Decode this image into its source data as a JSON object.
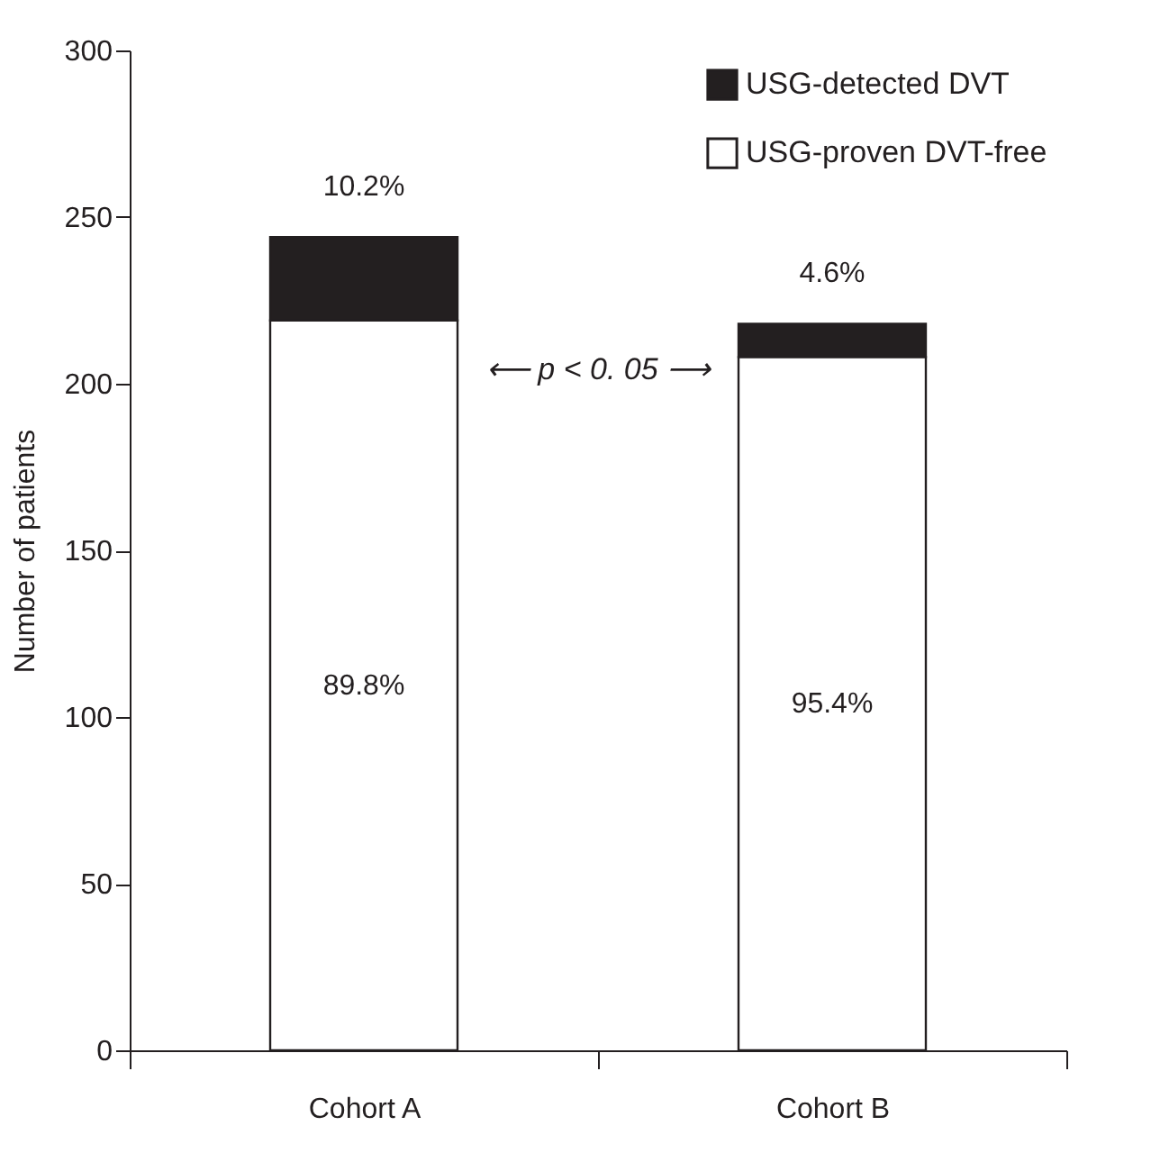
{
  "chart_data": {
    "type": "bar",
    "stacked": true,
    "categories": [
      "Cohort A",
      "Cohort B"
    ],
    "ylabel": "Number of patients",
    "ylim": [
      0,
      300
    ],
    "yticks": [
      0,
      50,
      100,
      150,
      200,
      250,
      300
    ],
    "grid": false,
    "legend": "top right",
    "series": [
      {
        "name": "USG-proven DVT-free",
        "color": "#ffffff",
        "values": [
          219,
          208
        ]
      },
      {
        "name": "USG-detected DVT",
        "color": "#231f20",
        "values": [
          25,
          10
        ]
      }
    ],
    "annotations": [
      "89.8%",
      "95.4%",
      {
        "text": "10.2%",
        "x": "Cohort A",
        "y": 244
      },
      {
        "text": "4.6%",
        "x": "Cohort B",
        "y": 218
      },
      "⟵ p < 0. 05 ⟶"
    ]
  }
}
